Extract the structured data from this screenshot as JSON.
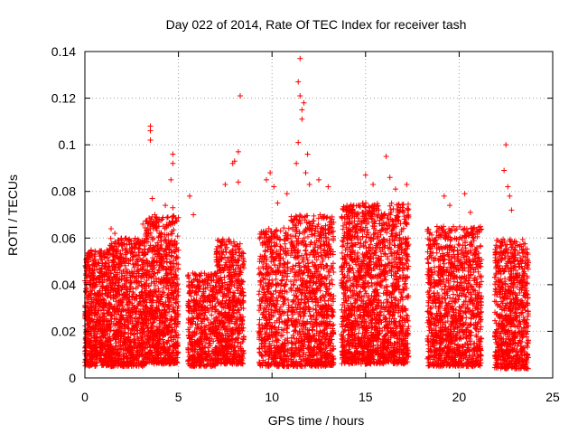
{
  "chart_data": {
    "type": "scatter",
    "title": "Day 022 of 2014, Rate Of TEC Index for receiver tash",
    "xlabel": "GPS time / hours",
    "ylabel": "ROTI / TECUs",
    "xlim": [
      0,
      25
    ],
    "ylim": [
      0,
      0.14
    ],
    "x_ticks": [
      0,
      5,
      10,
      15,
      20,
      25
    ],
    "x_tick_labels": [
      "0",
      "5",
      "10",
      "15",
      "20",
      "25"
    ],
    "y_ticks": [
      0,
      0.02,
      0.04,
      0.06,
      0.08,
      0.1,
      0.12,
      0.14
    ],
    "y_tick_labels": [
      "0",
      "0.02",
      "0.04",
      "0.06",
      "0.08",
      "0.1",
      "0.12",
      "0.14"
    ],
    "grid": true,
    "marker": "+",
    "marker_color": "#ff0000",
    "series": [
      {
        "name": "ROTI",
        "clusters": [
          {
            "x_range": [
              0.0,
              1.3
            ],
            "y_base": 0.005,
            "y_top": 0.055,
            "count": 700
          },
          {
            "x_range": [
              1.3,
              3.2
            ],
            "y_base": 0.005,
            "y_top": 0.06,
            "count": 900
          },
          {
            "x_range": [
              3.2,
              5.0
            ],
            "y_base": 0.006,
            "y_top": 0.07,
            "count": 900
          },
          {
            "x_range": [
              5.5,
              7.0
            ],
            "y_base": 0.005,
            "y_top": 0.045,
            "count": 500
          },
          {
            "x_range": [
              7.0,
              8.5
            ],
            "y_base": 0.006,
            "y_top": 0.06,
            "count": 650
          },
          {
            "x_range": [
              9.3,
              10.9
            ],
            "y_base": 0.005,
            "y_top": 0.065,
            "count": 600
          },
          {
            "x_range": [
              11.0,
              13.3
            ],
            "y_base": 0.005,
            "y_top": 0.07,
            "count": 1000
          },
          {
            "x_range": [
              13.7,
              17.3
            ],
            "y_base": 0.006,
            "y_top": 0.075,
            "count": 1800
          },
          {
            "x_range": [
              18.3,
              21.2
            ],
            "y_base": 0.005,
            "y_top": 0.065,
            "count": 1200
          },
          {
            "x_range": [
              21.9,
              23.7
            ],
            "y_base": 0.004,
            "y_top": 0.06,
            "count": 800
          }
        ],
        "outliers": [
          {
            "x": 1.4,
            "y": 0.064
          },
          {
            "x": 1.6,
            "y": 0.062
          },
          {
            "x": 2.2,
            "y": 0.06
          },
          {
            "x": 3.1,
            "y": 0.066
          },
          {
            "x": 3.3,
            "y": 0.063
          },
          {
            "x": 3.5,
            "y": 0.102
          },
          {
            "x": 3.5,
            "y": 0.106
          },
          {
            "x": 3.5,
            "y": 0.108
          },
          {
            "x": 3.6,
            "y": 0.077
          },
          {
            "x": 4.0,
            "y": 0.062
          },
          {
            "x": 4.3,
            "y": 0.074
          },
          {
            "x": 4.6,
            "y": 0.085
          },
          {
            "x": 4.7,
            "y": 0.092
          },
          {
            "x": 4.7,
            "y": 0.096
          },
          {
            "x": 4.7,
            "y": 0.073
          },
          {
            "x": 5.6,
            "y": 0.078
          },
          {
            "x": 5.8,
            "y": 0.07
          },
          {
            "x": 7.5,
            "y": 0.083
          },
          {
            "x": 7.9,
            "y": 0.092
          },
          {
            "x": 8.0,
            "y": 0.093
          },
          {
            "x": 8.2,
            "y": 0.097
          },
          {
            "x": 8.2,
            "y": 0.084
          },
          {
            "x": 8.3,
            "y": 0.121
          },
          {
            "x": 9.7,
            "y": 0.085
          },
          {
            "x": 9.9,
            "y": 0.088
          },
          {
            "x": 10.1,
            "y": 0.082
          },
          {
            "x": 10.3,
            "y": 0.075
          },
          {
            "x": 10.8,
            "y": 0.079
          },
          {
            "x": 11.3,
            "y": 0.092
          },
          {
            "x": 11.4,
            "y": 0.101
          },
          {
            "x": 11.4,
            "y": 0.127
          },
          {
            "x": 11.5,
            "y": 0.137
          },
          {
            "x": 11.5,
            "y": 0.121
          },
          {
            "x": 11.6,
            "y": 0.115
          },
          {
            "x": 11.6,
            "y": 0.111
          },
          {
            "x": 11.7,
            "y": 0.118
          },
          {
            "x": 11.8,
            "y": 0.088
          },
          {
            "x": 11.9,
            "y": 0.096
          },
          {
            "x": 12.0,
            "y": 0.083
          },
          {
            "x": 12.5,
            "y": 0.085
          },
          {
            "x": 13.0,
            "y": 0.082
          },
          {
            "x": 15.0,
            "y": 0.087
          },
          {
            "x": 15.4,
            "y": 0.083
          },
          {
            "x": 16.1,
            "y": 0.095
          },
          {
            "x": 16.3,
            "y": 0.086
          },
          {
            "x": 16.6,
            "y": 0.081
          },
          {
            "x": 17.2,
            "y": 0.083
          },
          {
            "x": 19.2,
            "y": 0.078
          },
          {
            "x": 19.5,
            "y": 0.074
          },
          {
            "x": 20.3,
            "y": 0.079
          },
          {
            "x": 20.6,
            "y": 0.071
          },
          {
            "x": 22.4,
            "y": 0.089
          },
          {
            "x": 22.5,
            "y": 0.1
          },
          {
            "x": 22.6,
            "y": 0.082
          },
          {
            "x": 22.7,
            "y": 0.078
          },
          {
            "x": 22.8,
            "y": 0.072
          }
        ]
      }
    ]
  }
}
